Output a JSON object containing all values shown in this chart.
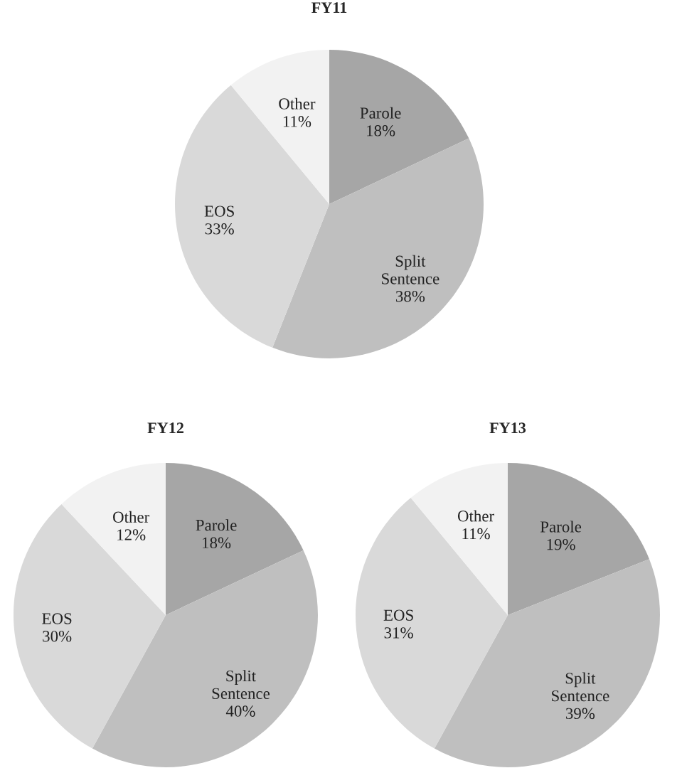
{
  "chart_data": [
    {
      "type": "pie",
      "title": "FY11",
      "categories": [
        "Parole",
        "Split Sentence",
        "EOS",
        "Other"
      ],
      "values": [
        18,
        38,
        33,
        11
      ],
      "value_labels": [
        "18%",
        "38%",
        "33%",
        "11%"
      ],
      "colors": [
        "#a6a6a6",
        "#bfbfbf",
        "#d9d9d9",
        "#f2f2f2"
      ]
    },
    {
      "type": "pie",
      "title": "FY12",
      "categories": [
        "Parole",
        "Split Sentence",
        "EOS",
        "Other"
      ],
      "values": [
        18,
        40,
        30,
        12
      ],
      "value_labels": [
        "18%",
        "40%",
        "30%",
        "12%"
      ],
      "colors": [
        "#a6a6a6",
        "#bfbfbf",
        "#d9d9d9",
        "#f2f2f2"
      ]
    },
    {
      "type": "pie",
      "title": "FY13",
      "categories": [
        "Parole",
        "Split Sentence",
        "EOS",
        "Other"
      ],
      "values": [
        19,
        39,
        31,
        11
      ],
      "value_labels": [
        "19%",
        "39%",
        "31%",
        "11%"
      ],
      "colors": [
        "#a6a6a6",
        "#bfbfbf",
        "#d9d9d9",
        "#f2f2f2"
      ]
    }
  ]
}
